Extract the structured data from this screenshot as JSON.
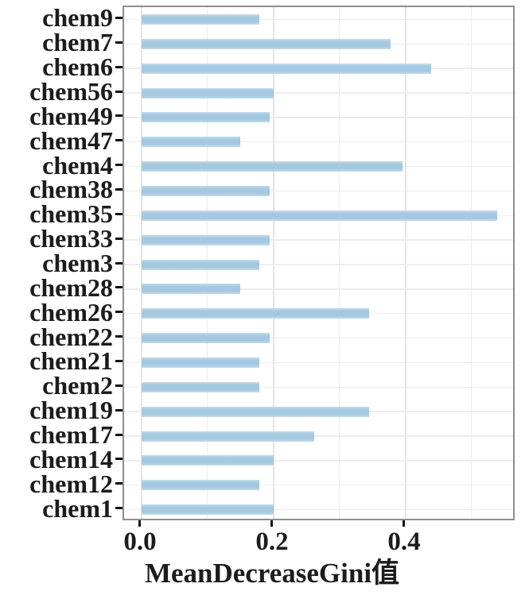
{
  "chart_data": {
    "type": "bar",
    "orientation": "horizontal",
    "title": "",
    "xlabel": "MeanDecreaseGini值",
    "ylabel": "",
    "categories_top_to_bottom": [
      "chem9",
      "chem7",
      "chem6",
      "chem56",
      "chem49",
      "chem47",
      "chem4",
      "chem38",
      "chem35",
      "chem33",
      "chem3",
      "chem28",
      "chem26",
      "chem22",
      "chem21",
      "chem2",
      "chem19",
      "chem17",
      "chem14",
      "chem12",
      "chem1"
    ],
    "values": [
      0.178,
      0.377,
      0.438,
      0.2,
      0.194,
      0.15,
      0.395,
      0.194,
      0.538,
      0.194,
      0.178,
      0.15,
      0.345,
      0.194,
      0.178,
      0.178,
      0.345,
      0.261,
      0.2,
      0.178,
      0.2
    ],
    "xticks": {
      "values": [
        0,
        0.2,
        0.4
      ],
      "labels": [
        "0.0",
        "0.2",
        "0.4"
      ]
    },
    "xgrid_major": [
      0,
      0.2,
      0.4
    ],
    "xgrid_minor": [
      0.1,
      0.3,
      0.5
    ],
    "xlim_display": [
      -0.0265,
      0.5675
    ],
    "grid": true,
    "legend": false,
    "colors": {
      "bar_fill": "#a3c8e0",
      "bar_edge": "#c2dbeb",
      "panel_border": "#8f8f8f",
      "grid_major": "#e4e4e4",
      "grid_minor": "#ededed",
      "tick": "#111111",
      "text": "#1c1c1c",
      "background": "#ffffff"
    }
  }
}
